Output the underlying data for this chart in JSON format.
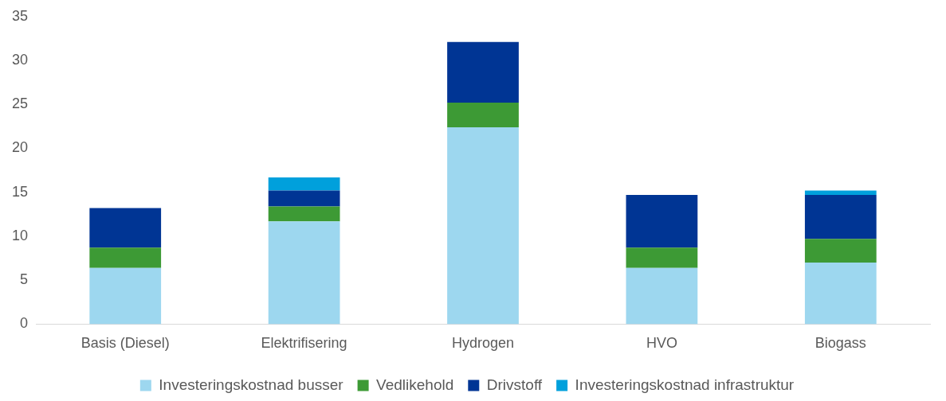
{
  "chart_data": {
    "type": "bar",
    "stacked": true,
    "categories": [
      "Basis (Diesel)",
      "Elektrifisering",
      "Hydrogen",
      "HVO",
      "Biogass"
    ],
    "series": [
      {
        "name": "Investeringskostnad busser",
        "color": "#9dd7ef",
        "values": [
          6.4,
          11.7,
          22.4,
          6.4,
          7.0
        ]
      },
      {
        "name": "Vedlikehold",
        "color": "#3d9a35",
        "values": [
          2.3,
          1.7,
          2.8,
          2.3,
          2.7
        ]
      },
      {
        "name": "Drivstoff",
        "color": "#003594",
        "values": [
          4.5,
          1.8,
          6.9,
          6.0,
          5.0
        ]
      },
      {
        "name": "Investeringskostnad infrastruktur",
        "color": "#00a0dc",
        "values": [
          null,
          1.5,
          null,
          null,
          0.5
        ]
      }
    ],
    "ylim": [
      0,
      35
    ],
    "yticks": [
      0,
      5,
      10,
      15,
      20,
      25,
      30,
      35
    ],
    "grid": false,
    "legend": "bottom"
  }
}
